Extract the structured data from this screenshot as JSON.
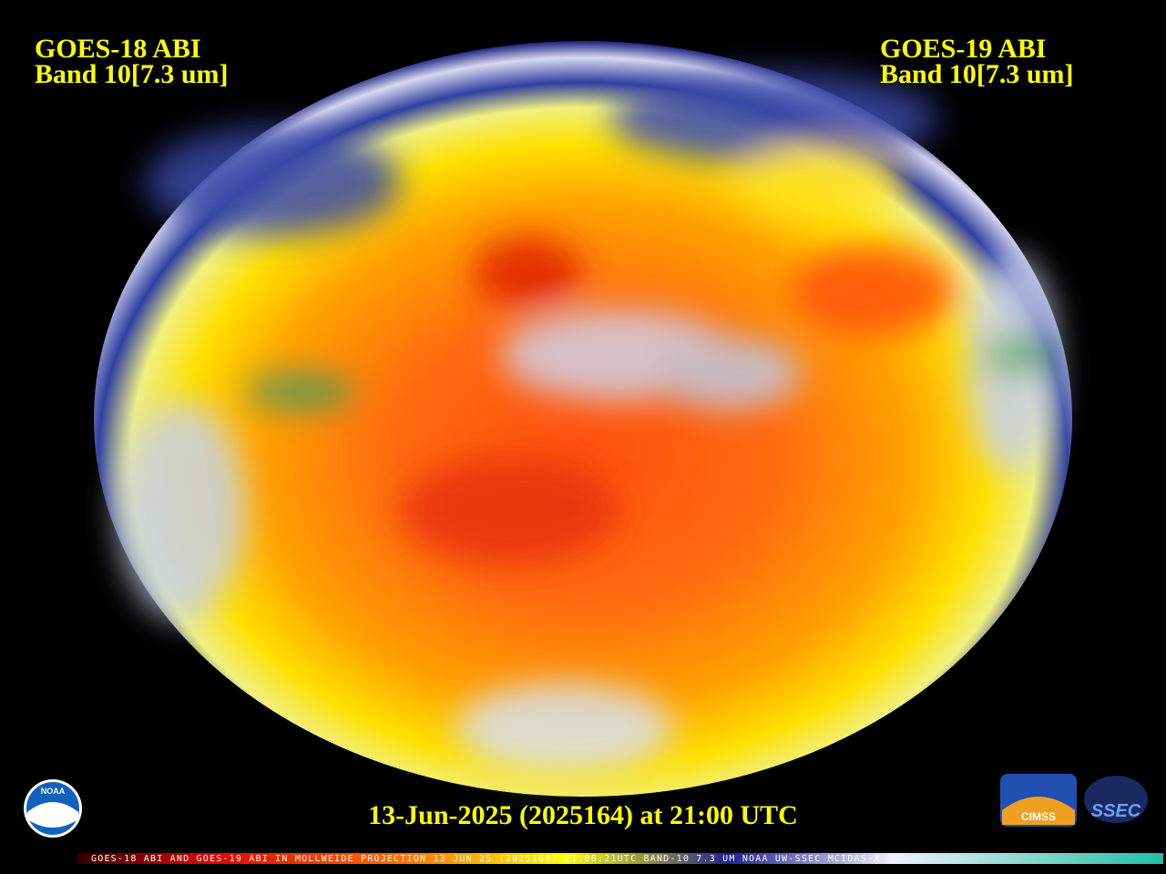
{
  "left_label": {
    "line1": "GOES-18 ABI",
    "line2": "Band 10[7.3 um]"
  },
  "right_label": {
    "line1": "GOES-19 ABI",
    "line2": "Band 10[7.3 um]"
  },
  "timestamp": "13-Jun-2025 (2025164) at 21:00 UTC",
  "banner": "GOES-18 ABI AND GOES-19 ABI IN MOLLWEIDE PROJECTION 13 JUN 25 (2025164) 21:00:21UTC BAND-10 7.3 UM NOAA UW-SSEC MCIDAS-X",
  "logos": {
    "noaa": "NOAA",
    "cimss": "CIMSS",
    "ssec": "SSEC"
  }
}
